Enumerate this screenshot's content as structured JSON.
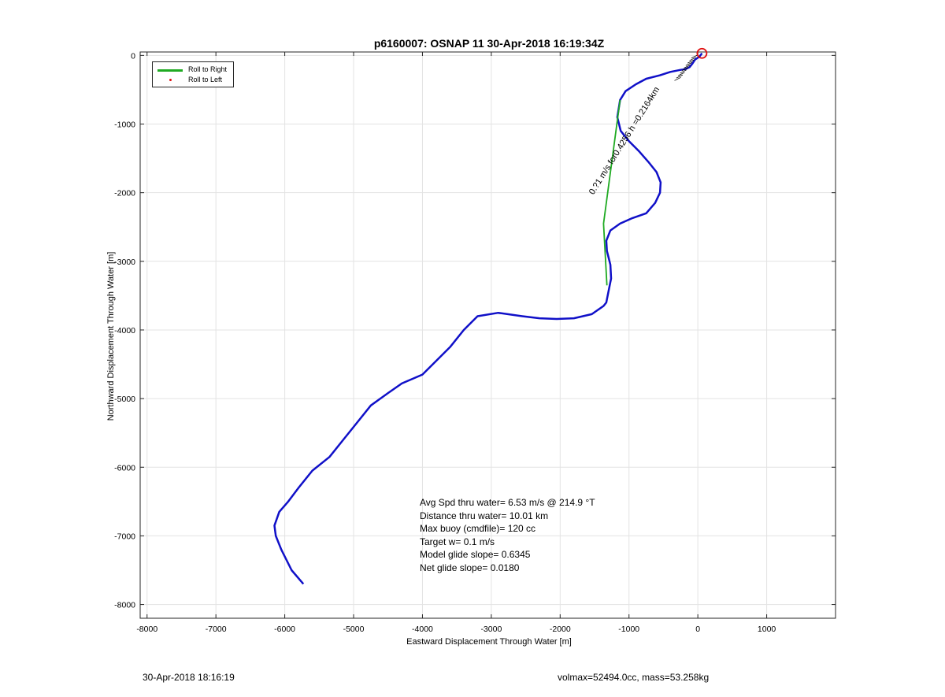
{
  "chart_data": {
    "type": "line",
    "title": "p6160007: OSNAP 11 30-Apr-2018 16:19:34Z",
    "xlabel": "Eastward Displacement Through Water [m]",
    "ylabel": "Northward Displacement Through Water [m]",
    "xlim": [
      -8100,
      2000
    ],
    "ylim": [
      -8200,
      50
    ],
    "xticks": [
      -8000,
      -7000,
      -6000,
      -5000,
      -4000,
      -3000,
      -2000,
      -1000,
      0,
      1000
    ],
    "yticks": [
      0,
      -1000,
      -2000,
      -3000,
      -4000,
      -5000,
      -6000,
      -7000,
      -8000
    ],
    "grid": true,
    "legend_position": "top-left",
    "legend": [
      "Roll to Right",
      "Roll to Left"
    ],
    "colors": {
      "track": "#1010c8",
      "roll_right": "#1faa22",
      "roll_left": "#e01010",
      "start_marker": "#e01010",
      "current_label": "#000000"
    },
    "series": [
      {
        "x": [
          60,
          20,
          -40,
          -80,
          -120,
          -180,
          -250,
          -400,
          -550,
          -750,
          -900,
          -1050,
          -1130,
          -1170,
          -1120,
          -1000,
          -850,
          -720,
          -600,
          -540,
          -550,
          -620,
          -750,
          -950,
          -1130,
          -1270,
          -1330,
          -1320,
          -1270,
          -1260,
          -1300,
          -1330,
          -1370,
          -1540,
          -1800,
          -2050,
          -2300,
          -2550,
          -2900,
          -3200,
          -3400,
          -3600,
          -3850,
          -4000,
          -4300,
          -4500,
          -4750,
          -4950,
          -5150,
          -5350,
          -5600,
          -5800,
          -5950,
          -6080,
          -6150,
          -6130,
          -6050,
          -5900,
          -5730
        ],
        "y": [
          30,
          -20,
          -60,
          -120,
          -170,
          -200,
          -210,
          -240,
          -290,
          -340,
          -420,
          -520,
          -650,
          -900,
          -1100,
          -1250,
          -1400,
          -1550,
          -1700,
          -1850,
          -2000,
          -2150,
          -2300,
          -2370,
          -2450,
          -2550,
          -2700,
          -2850,
          -3050,
          -3250,
          -3450,
          -3600,
          -3650,
          -3770,
          -3830,
          -3840,
          -3830,
          -3800,
          -3750,
          -3800,
          -4000,
          -4250,
          -4500,
          -4650,
          -4780,
          -4920,
          -5100,
          -5350,
          -5600,
          -5850,
          -6050,
          -6300,
          -6500,
          -6650,
          -6850,
          -7000,
          -7200,
          -7500,
          -7700
        ]
      },
      {
        "name": "Roll to Right",
        "x": [
          -1130,
          -1370,
          -1320
        ],
        "y": [
          -650,
          -2450,
          -3350
        ]
      }
    ],
    "start_marker": {
      "x": 60,
      "y": 30
    },
    "current_annotation": {
      "text": "0.?1 m/s for0.4256 h =0.2164km",
      "angle_deg": -58,
      "x_start": -1540,
      "y_start": -2000,
      "x_end": -20,
      "y_end": 20
    }
  },
  "stats": {
    "line1": "Avg Spd thru water=  6.53 m/s @ 214.9 °T",
    "line2": "Distance thru water= 10.01 km",
    "line3": "Max buoy (cmdfile)= 120 cc",
    "line4": "Target w= 0.1 m/s",
    "line5": "Model glide slope= 0.6345",
    "line6": "Net glide slope= 0.0180"
  },
  "footer": {
    "timestamp": "30-Apr-2018 18:16:19",
    "volmax": "volmax=52494.0cc, mass=53.258kg"
  }
}
